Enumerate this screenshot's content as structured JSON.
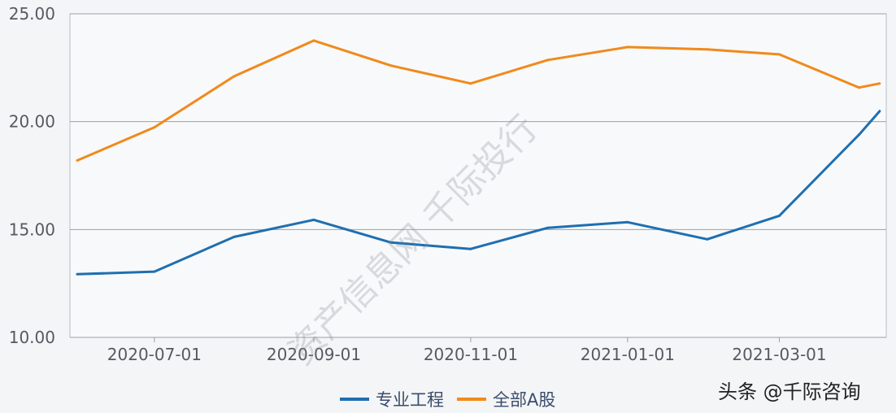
{
  "chart_data": {
    "type": "line",
    "x": [
      "2020-06-01",
      "2020-07-01",
      "2020-08-01",
      "2020-09-01",
      "2020-10-01",
      "2020-11-01",
      "2020-12-01",
      "2021-01-01",
      "2021-02-01",
      "2021-03-01",
      "2021-04-01",
      "2021-04-09"
    ],
    "series": [
      {
        "name": "专业工程",
        "color": "#1f6fb0",
        "values": [
          12.93,
          13.05,
          14.66,
          15.45,
          14.4,
          14.1,
          15.08,
          15.34,
          14.55,
          15.64,
          19.4,
          20.49
        ]
      },
      {
        "name": "全部A股",
        "color": "#f08a1c",
        "values": [
          18.2,
          19.74,
          22.1,
          23.76,
          22.6,
          21.77,
          22.86,
          23.46,
          23.35,
          23.12,
          21.58,
          21.77
        ]
      }
    ],
    "x_ticks": [
      "2020-07-01",
      "2020-09-01",
      "2020-11-01",
      "2021-01-01",
      "2021-03-01"
    ],
    "y_ticks": [
      "10.00",
      "15.00",
      "20.00",
      "25.00"
    ],
    "ylim": [
      10,
      25
    ],
    "grid": "horizontal",
    "legend": "bottom-center",
    "title": "",
    "xlabel": "",
    "ylabel": ""
  },
  "credit": "头条 @千际咨询",
  "watermark": "资产信息网 千际投行"
}
